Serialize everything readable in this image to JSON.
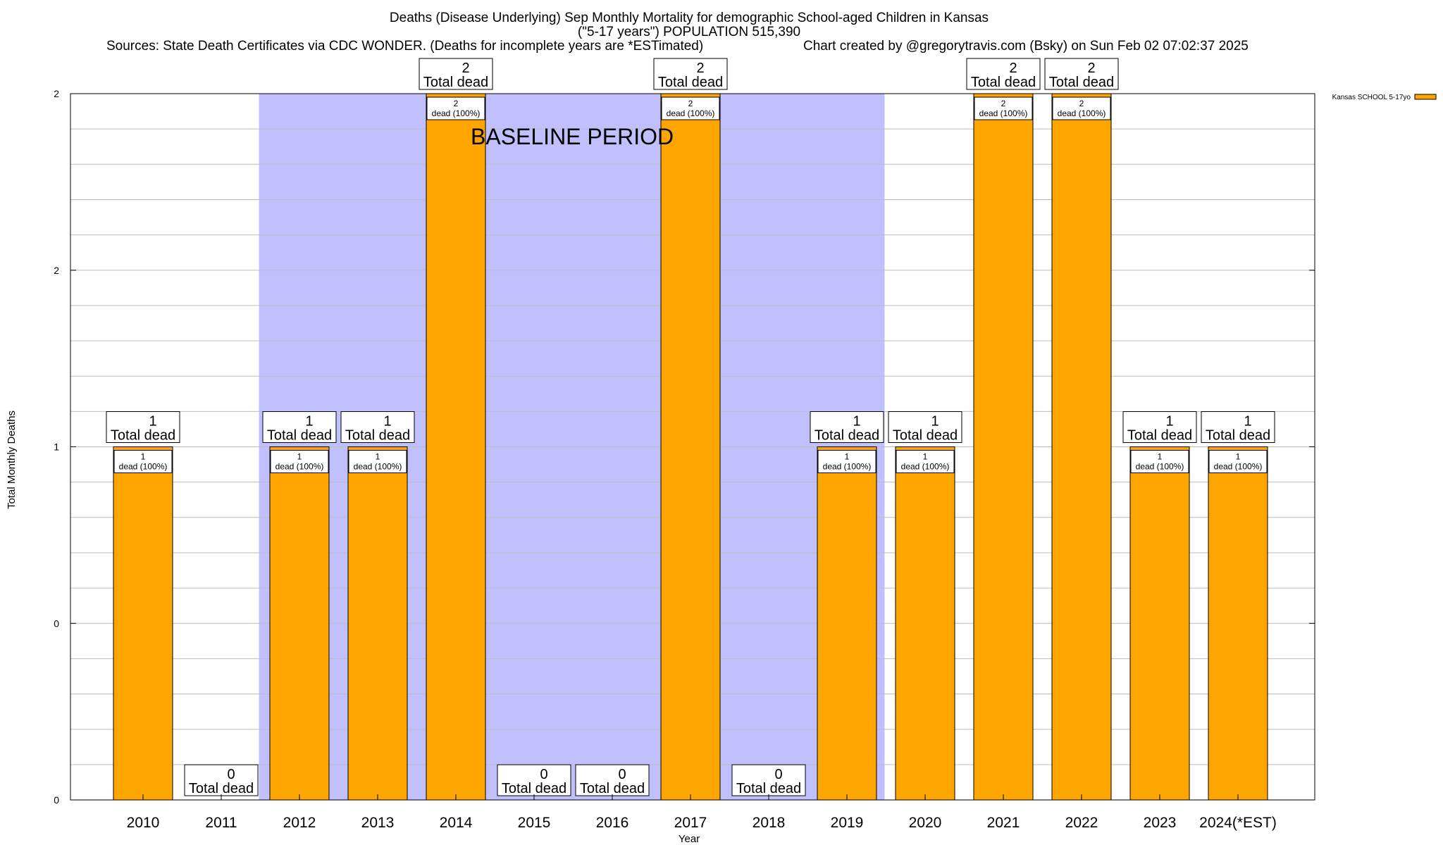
{
  "chart_data": {
    "type": "bar",
    "title_line1": "Deaths (Disease Underlying) Sep Monthly Mortality for demographic School-aged Children in Kansas",
    "title_line2": "(\"5-17 years\") POPULATION 515,390",
    "sources": "Sources: State Death Certificates via CDC WONDER. (Deaths for incomplete years are *ESTimated)",
    "credit": "Chart created by @gregorytravis.com (Bsky) on Sun Feb 02 07:02:37 2025",
    "xlabel": "Year",
    "ylabel": "Total Monthly Deaths",
    "categories": [
      "2010",
      "2011",
      "2012",
      "2013",
      "2014",
      "2015",
      "2016",
      "2017",
      "2018",
      "2019",
      "2020",
      "2021",
      "2022",
      "2023",
      "2024(*EST)"
    ],
    "series": [
      {
        "name": "Kansas SCHOOL 5-17yo",
        "color": "#ffa500",
        "values": [
          1,
          0,
          1,
          1,
          2,
          0,
          0,
          2,
          0,
          1,
          1,
          2,
          2,
          1,
          1
        ]
      }
    ],
    "ylim": [
      0,
      2
    ],
    "yticks": [
      {
        "value": 0,
        "label": "0"
      },
      {
        "value": 0.5,
        "label": "0"
      },
      {
        "value": 1,
        "label": "1"
      },
      {
        "value": 1.5,
        "label": "2"
      },
      {
        "value": 2,
        "label": "2"
      }
    ],
    "total_label_text": "Total dead",
    "inner_label_text": "dead (100%)",
    "baseline_period": {
      "label": "BASELINE PERIOD",
      "start_year": "2012",
      "end_year": "2019",
      "color": "#c0c0ff"
    },
    "legend_position": "top-right",
    "grid": true
  }
}
